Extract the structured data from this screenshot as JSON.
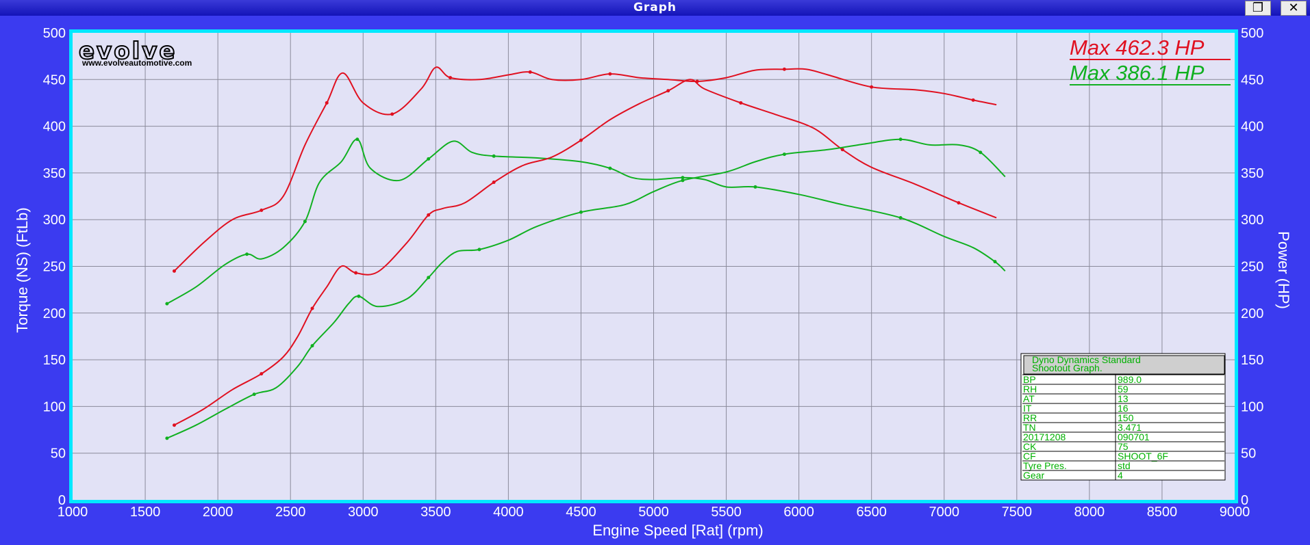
{
  "window": {
    "title": "Graph",
    "restore_icon": "restore-icon",
    "close_icon": "close-icon"
  },
  "logo": {
    "brand": "evolve",
    "url": "www.evolveautomotive.com"
  },
  "colors": {
    "red": "#e01020",
    "green": "#10b020",
    "plot_bg": "#e2e2f6",
    "frame": "#00e8ff",
    "outer_bg": "#3b3bf0"
  },
  "max_labels": [
    {
      "text": "Max 462.3 HP",
      "color": "#e01020"
    },
    {
      "text": "Max 386.1 HP",
      "color": "#10b020"
    }
  ],
  "info_table": {
    "title": [
      "Dyno Dynamics Standard",
      "Shootout Graph."
    ],
    "rows": [
      [
        "BP",
        "989.0"
      ],
      [
        "RH",
        "59"
      ],
      [
        "AT",
        "13"
      ],
      [
        "IT",
        "16"
      ],
      [
        "RR",
        "150"
      ],
      [
        "TN",
        "3.471"
      ],
      [
        "20171208",
        "090701"
      ],
      [
        "CK",
        "75"
      ],
      [
        "CF",
        "SHOOT_6F"
      ],
      [
        "Tyre Pres.",
        "std"
      ],
      [
        "Gear",
        "4"
      ]
    ]
  },
  "chart_data": {
    "type": "line",
    "xlabel": "Engine Speed [Rat] (rpm)",
    "ylabel": "Torque (NS) (FtLb)",
    "y2label": "Power (HP)",
    "xlim": [
      1000,
      9000
    ],
    "ylim": [
      0,
      500
    ],
    "y2lim": [
      0,
      500
    ],
    "xticks": [
      1000,
      1500,
      2000,
      2500,
      3000,
      3500,
      4000,
      4500,
      5000,
      5500,
      6000,
      6500,
      7000,
      7500,
      8000,
      8500,
      9000
    ],
    "yticks": [
      0,
      50,
      100,
      150,
      200,
      250,
      300,
      350,
      400,
      450,
      500
    ],
    "grid": true,
    "series": [
      {
        "color": "#e01020",
        "points": [
          [
            1700,
            245
          ],
          [
            1900,
            275
          ],
          [
            2100,
            300
          ],
          [
            2300,
            310
          ],
          [
            2450,
            325
          ],
          [
            2600,
            380
          ],
          [
            2750,
            425
          ],
          [
            2860,
            457
          ],
          [
            3000,
            425
          ],
          [
            3200,
            413
          ],
          [
            3400,
            440
          ],
          [
            3500,
            463
          ],
          [
            3600,
            452
          ],
          [
            3800,
            450
          ],
          [
            4000,
            455
          ],
          [
            4150,
            458
          ],
          [
            4300,
            450
          ],
          [
            4500,
            450
          ],
          [
            4700,
            456
          ],
          [
            4900,
            452
          ],
          [
            5100,
            450
          ],
          [
            5300,
            448
          ],
          [
            5500,
            452
          ],
          [
            5700,
            460
          ],
          [
            5900,
            461
          ],
          [
            6050,
            461
          ],
          [
            6200,
            455
          ],
          [
            6500,
            442
          ],
          [
            6800,
            439
          ],
          [
            7000,
            435
          ],
          [
            7200,
            428
          ],
          [
            7360,
            423
          ]
        ]
      },
      {
        "color": "#10b020",
        "points": [
          [
            1650,
            210
          ],
          [
            1850,
            228
          ],
          [
            2050,
            252
          ],
          [
            2200,
            263
          ],
          [
            2300,
            258
          ],
          [
            2450,
            270
          ],
          [
            2600,
            298
          ],
          [
            2700,
            340
          ],
          [
            2850,
            362
          ],
          [
            2960,
            386
          ],
          [
            3050,
            355
          ],
          [
            3250,
            342
          ],
          [
            3450,
            365
          ],
          [
            3620,
            384
          ],
          [
            3750,
            372
          ],
          [
            3900,
            368
          ],
          [
            4200,
            366
          ],
          [
            4500,
            362
          ],
          [
            4700,
            355
          ],
          [
            4850,
            345
          ],
          [
            5000,
            343
          ],
          [
            5200,
            345
          ],
          [
            5350,
            343
          ],
          [
            5500,
            335
          ],
          [
            5700,
            335
          ],
          [
            6000,
            327
          ],
          [
            6300,
            316
          ],
          [
            6700,
            302
          ],
          [
            7000,
            282
          ],
          [
            7200,
            270
          ],
          [
            7350,
            255
          ],
          [
            7420,
            245
          ]
        ]
      },
      {
        "color": "#e01020",
        "points": [
          [
            1700,
            80
          ],
          [
            1900,
            97
          ],
          [
            2100,
            118
          ],
          [
            2300,
            135
          ],
          [
            2450,
            153
          ],
          [
            2550,
            175
          ],
          [
            2650,
            205
          ],
          [
            2750,
            228
          ],
          [
            2850,
            250
          ],
          [
            2950,
            243
          ],
          [
            3100,
            244
          ],
          [
            3300,
            275
          ],
          [
            3450,
            305
          ],
          [
            3550,
            312
          ],
          [
            3700,
            318
          ],
          [
            3900,
            340
          ],
          [
            4100,
            358
          ],
          [
            4300,
            367
          ],
          [
            4500,
            385
          ],
          [
            4700,
            407
          ],
          [
            4900,
            424
          ],
          [
            5100,
            438
          ],
          [
            5250,
            450
          ],
          [
            5350,
            440
          ],
          [
            5600,
            425
          ],
          [
            5850,
            412
          ],
          [
            6100,
            398
          ],
          [
            6300,
            375
          ],
          [
            6500,
            356
          ],
          [
            6800,
            338
          ],
          [
            7100,
            318
          ],
          [
            7360,
            302
          ]
        ]
      },
      {
        "color": "#10b020",
        "points": [
          [
            1650,
            66
          ],
          [
            1850,
            80
          ],
          [
            2050,
            97
          ],
          [
            2250,
            113
          ],
          [
            2400,
            120
          ],
          [
            2550,
            143
          ],
          [
            2650,
            165
          ],
          [
            2800,
            190
          ],
          [
            2900,
            210
          ],
          [
            2970,
            218
          ],
          [
            3100,
            207
          ],
          [
            3300,
            215
          ],
          [
            3450,
            238
          ],
          [
            3550,
            255
          ],
          [
            3650,
            266
          ],
          [
            3800,
            268
          ],
          [
            4000,
            278
          ],
          [
            4200,
            293
          ],
          [
            4500,
            308
          ],
          [
            4800,
            316
          ],
          [
            5000,
            330
          ],
          [
            5200,
            342
          ],
          [
            5500,
            351
          ],
          [
            5700,
            362
          ],
          [
            5900,
            370
          ],
          [
            6200,
            375
          ],
          [
            6450,
            381
          ],
          [
            6700,
            386
          ],
          [
            6900,
            380
          ],
          [
            7100,
            380
          ],
          [
            7250,
            372
          ],
          [
            7420,
            346
          ]
        ]
      }
    ]
  }
}
